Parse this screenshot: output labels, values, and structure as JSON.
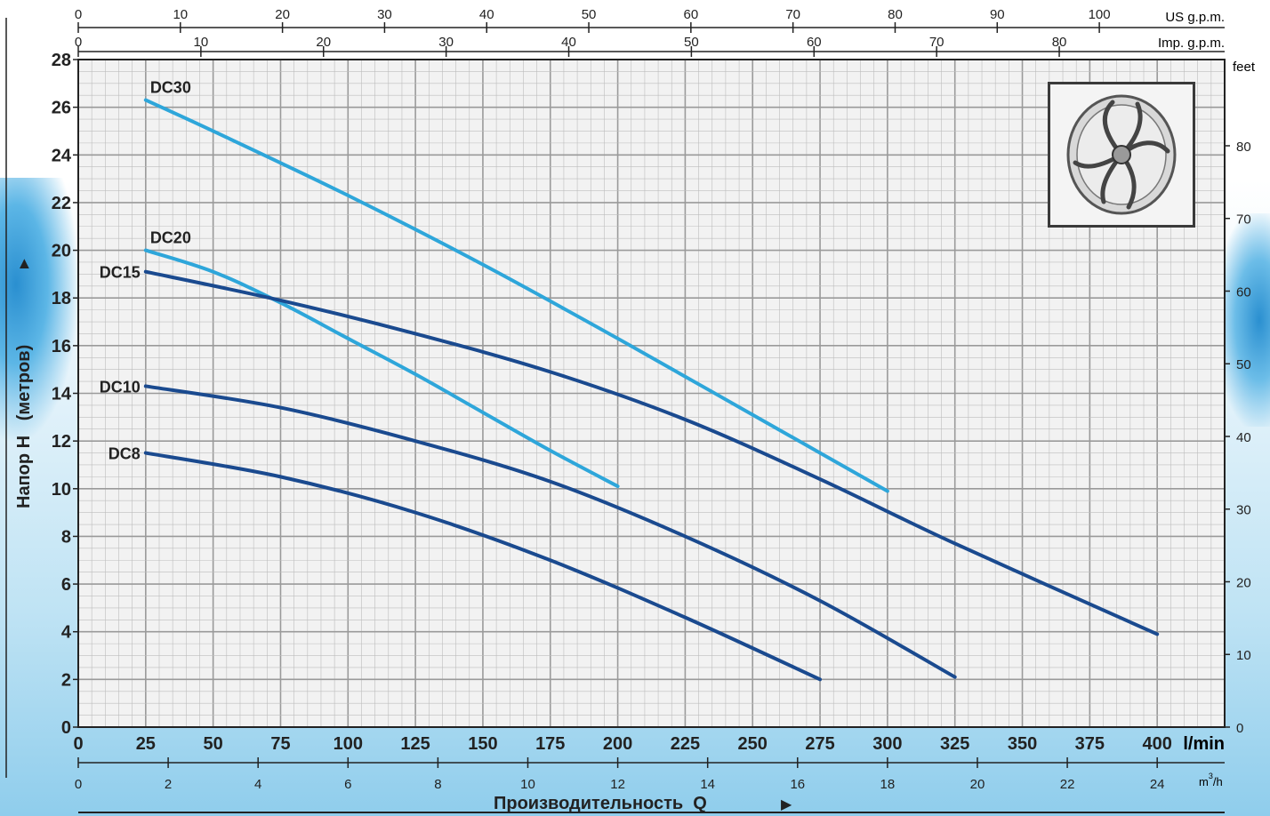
{
  "axes": {
    "bottom_unit": "l/min",
    "bottom2_unit": "m",
    "bottom2_unit_sup": "3",
    "bottom2_unit_tail": "/h",
    "top1_unit": "US g.p.m.",
    "top2_unit": "Imp. g.p.m.",
    "right_unit": "feet",
    "ylabel": "Напор H   (метров)",
    "xlabel": "Производительность  Q"
  },
  "thumbnail": {
    "icon": "impeller-icon"
  },
  "colors": {
    "dark_series": "#1a4a8f",
    "light_series": "#2ea6da",
    "grid_major": "#9a9a9a",
    "grid_minor": "#bdbdbd",
    "plot_bg": "#f2f2f2",
    "axis": "#222222"
  },
  "chart_data": {
    "type": "line",
    "title": "",
    "xlabel": "Производительность  Q",
    "ylabel": "Напор H   (метров)",
    "x_unit": "l/min",
    "xlim": [
      0,
      425
    ],
    "ylim": [
      0,
      28
    ],
    "grid": true,
    "x_ticks": [
      0,
      25,
      50,
      75,
      100,
      125,
      150,
      175,
      200,
      225,
      250,
      275,
      300,
      325,
      350,
      375,
      400
    ],
    "y_ticks": [
      0,
      2,
      4,
      6,
      8,
      10,
      12,
      14,
      16,
      18,
      20,
      22,
      24,
      26,
      28
    ],
    "secondary_axes": {
      "m3h_ticks": [
        0,
        2,
        4,
        6,
        8,
        10,
        12,
        14,
        16,
        18,
        20,
        22,
        24
      ],
      "us_gpm_ticks": [
        0,
        10,
        20,
        30,
        40,
        50,
        60,
        70,
        80,
        90,
        100
      ],
      "imp_gpm_ticks": [
        0,
        10,
        20,
        30,
        40,
        50,
        60,
        70,
        80
      ],
      "feet_ticks": [
        0,
        10,
        20,
        30,
        40,
        50,
        60,
        70,
        80
      ]
    },
    "series": [
      {
        "name": "DC30",
        "color": "light",
        "x": [
          25,
          50,
          100,
          150,
          200,
          250,
          300
        ],
        "y": [
          26.3,
          25.0,
          22.3,
          19.4,
          16.3,
          13.1,
          9.9
        ]
      },
      {
        "name": "DC20",
        "color": "light",
        "x": [
          25,
          50,
          75,
          100,
          125,
          150,
          175,
          200
        ],
        "y": [
          20.0,
          19.1,
          17.8,
          16.3,
          14.8,
          13.2,
          11.6,
          10.1
        ]
      },
      {
        "name": "DC15",
        "color": "dark",
        "x": [
          25,
          75,
          125,
          175,
          225,
          275,
          325,
          400
        ],
        "y": [
          19.1,
          17.9,
          16.5,
          14.9,
          12.9,
          10.4,
          7.7,
          3.9
        ]
      },
      {
        "name": "DC10",
        "color": "dark",
        "x": [
          25,
          75,
          125,
          175,
          225,
          275,
          325
        ],
        "y": [
          14.3,
          13.4,
          12.0,
          10.3,
          8.0,
          5.3,
          2.1
        ]
      },
      {
        "name": "DC8",
        "color": "dark",
        "x": [
          25,
          75,
          125,
          175,
          225,
          275
        ],
        "y": [
          11.5,
          10.5,
          9.0,
          7.0,
          4.6,
          2.0
        ]
      }
    ]
  }
}
